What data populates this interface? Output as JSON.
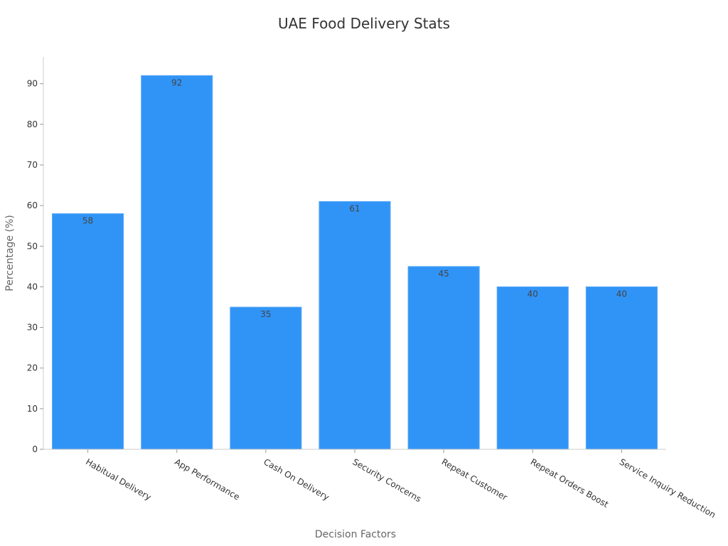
{
  "chart_data": {
    "type": "bar",
    "title": "UAE Food Delivery Stats",
    "xlabel": "Decision Factors",
    "ylabel": "Percentage (%)",
    "categories": [
      "Habitual Delivery",
      "App Performance",
      "Cash On Delivery",
      "Security Concerns",
      "Repeat Customer",
      "Repeat Orders Boost",
      "Service Inquiry Reduction"
    ],
    "values": [
      58,
      92,
      35,
      61,
      45,
      40,
      40
    ],
    "ylim": [
      0,
      96.6
    ],
    "yticks": [
      0,
      10,
      20,
      30,
      40,
      50,
      60,
      70,
      80,
      90
    ],
    "bar_color": "#3094f7",
    "grid": false,
    "legend": "none"
  }
}
